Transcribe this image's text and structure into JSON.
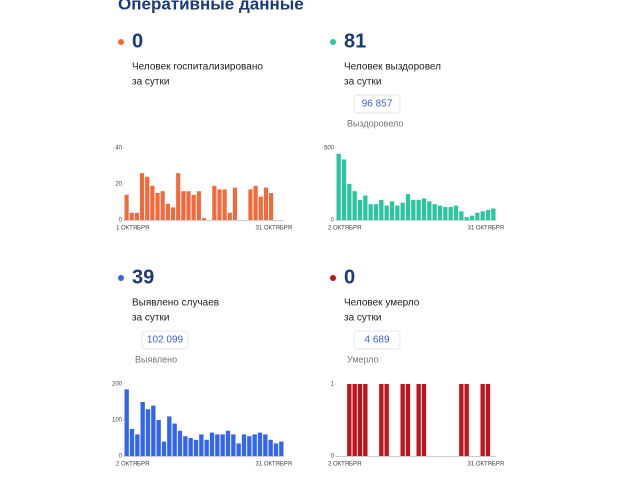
{
  "header": {
    "title": "Оперативные данные"
  },
  "chart_data": [
    {
      "type": "bar",
      "number": 0,
      "caption": [
        "Человек госпитализировано",
        "за сутки"
      ],
      "color": "#f26a3c",
      "categories": [
        "1 ОКТЯБРЯ",
        null,
        null,
        null,
        null,
        null,
        null,
        null,
        null,
        null,
        null,
        null,
        null,
        null,
        null,
        null,
        null,
        null,
        null,
        null,
        null,
        null,
        null,
        null,
        null,
        null,
        null,
        null,
        null,
        null,
        "31 ОКТЯБРЯ"
      ],
      "values": [
        14,
        4,
        4,
        26,
        24,
        19,
        15,
        16,
        9,
        7,
        26,
        16,
        16,
        14,
        16,
        1,
        0,
        19,
        17,
        17,
        4,
        18,
        0,
        0,
        17,
        19,
        13,
        18,
        15,
        0,
        0
      ],
      "ylim": [
        0,
        40
      ],
      "yticks": [
        0,
        20,
        40
      ]
    },
    {
      "type": "bar",
      "number": 81,
      "caption": [
        "Человек выздоровел",
        "за сутки"
      ],
      "total": "96 857",
      "total_caption": "Выздоровело",
      "color": "#2ec4a0",
      "categories": [
        "2 ОКТЯБРЯ",
        null,
        null,
        null,
        null,
        null,
        null,
        null,
        null,
        null,
        null,
        null,
        null,
        null,
        null,
        null,
        null,
        null,
        null,
        null,
        null,
        null,
        null,
        null,
        null,
        null,
        null,
        null,
        null,
        "31 ОКТЯБРЯ"
      ],
      "values": [
        460,
        420,
        250,
        200,
        140,
        170,
        110,
        110,
        140,
        100,
        130,
        100,
        120,
        180,
        140,
        140,
        150,
        130,
        110,
        100,
        90,
        90,
        100,
        60,
        20,
        30,
        50,
        60,
        70,
        80
      ],
      "ylim": [
        0,
        500
      ],
      "yticks": [
        0,
        500
      ]
    },
    {
      "type": "bar",
      "number": 39,
      "caption": [
        "Выявлено случаев",
        "за сутки"
      ],
      "total": "102 099",
      "total_caption": "Выявлено",
      "color": "#3366ee",
      "categories": [
        "2 ОКТЯБРЯ",
        null,
        null,
        null,
        null,
        null,
        null,
        null,
        null,
        null,
        null,
        null,
        null,
        null,
        null,
        null,
        null,
        null,
        null,
        null,
        null,
        null,
        null,
        null,
        null,
        null,
        null,
        null,
        null,
        "31 ОКТЯБРЯ"
      ],
      "values": [
        185,
        75,
        60,
        150,
        130,
        140,
        100,
        40,
        110,
        90,
        70,
        55,
        50,
        45,
        60,
        45,
        65,
        60,
        60,
        70,
        60,
        35,
        60,
        55,
        60,
        65,
        60,
        45,
        35,
        40
      ],
      "ylim": [
        0,
        200
      ],
      "yticks": [
        0,
        100,
        200
      ]
    },
    {
      "type": "bar",
      "number": 0,
      "caption": [
        "Человек умерло",
        "за сутки"
      ],
      "total": "4 689",
      "total_caption": "Умерло",
      "color": "#c0131a",
      "categories": [
        "2 ОКТЯБРЯ",
        null,
        null,
        null,
        null,
        null,
        null,
        null,
        null,
        null,
        null,
        null,
        null,
        null,
        null,
        null,
        null,
        null,
        null,
        null,
        null,
        null,
        null,
        null,
        null,
        null,
        null,
        null,
        null,
        "31 ОКТЯБРЯ"
      ],
      "values": [
        0,
        0,
        1,
        1,
        1,
        1,
        0,
        0,
        1,
        1,
        0,
        0,
        1,
        1,
        0,
        1,
        1,
        0,
        0,
        0,
        0,
        0,
        0,
        1,
        1,
        0,
        0,
        1,
        1,
        0
      ],
      "ylim": [
        0,
        1
      ],
      "yticks": [
        0,
        1
      ]
    }
  ]
}
